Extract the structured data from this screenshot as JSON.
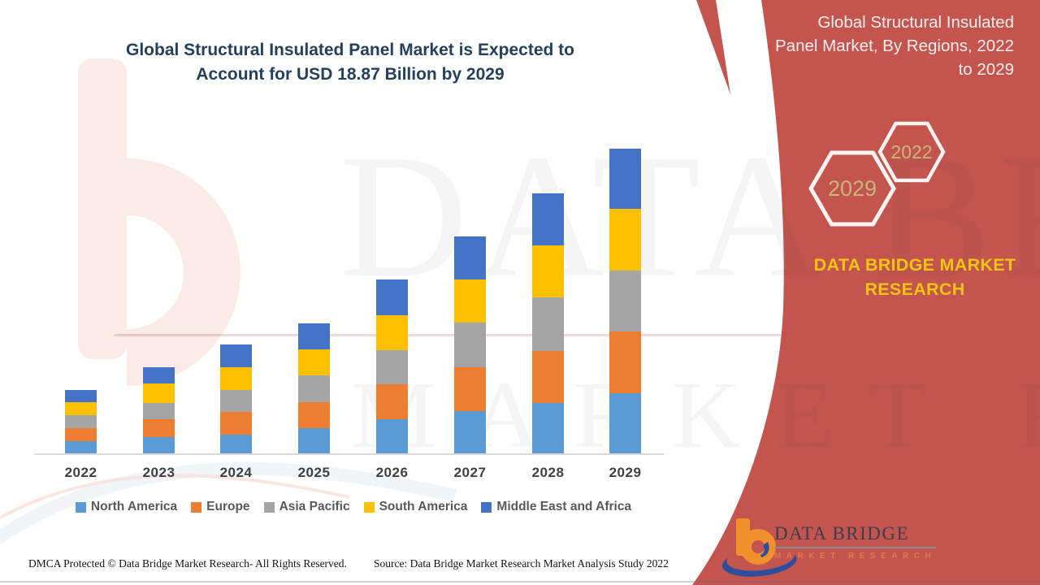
{
  "title": {
    "line1": "Global Structural Insulated Panel Market is Expected to",
    "line2": "Account for USD 18.87 Billion by 2029"
  },
  "side_header": {
    "lines": [
      "Global Structural Insulated",
      "Panel Market, By Regions, 2022",
      "to 2029"
    ]
  },
  "badges": {
    "hex_large_year": "2029",
    "hex_small_year": "2022"
  },
  "brand_text": "DATA BRIDGE MARKET RESEARCH",
  "watermark": {
    "line1": "DATA BRIDGE",
    "line2": "MARKET RESEARCH"
  },
  "chart_data": {
    "type": "bar",
    "stacked": true,
    "unit": "USD Billion",
    "title": "Global Structural Insulated Panel Market, By Regions, 2022 to 2029",
    "categories": [
      "2022",
      "2023",
      "2024",
      "2025",
      "2026",
      "2027",
      "2028",
      "2029"
    ],
    "series": [
      {
        "name": "North America",
        "color": "#5B9BD5",
        "values": [
          0.79,
          1.04,
          1.22,
          1.62,
          2.16,
          2.66,
          3.18,
          3.79
        ]
      },
      {
        "name": "Europe",
        "color": "#ED7D31",
        "values": [
          0.8,
          1.12,
          1.38,
          1.59,
          2.18,
          2.7,
          3.2,
          3.81
        ]
      },
      {
        "name": "Asia Pacific",
        "color": "#A5A5A5",
        "values": [
          0.83,
          1.02,
          1.37,
          1.67,
          2.11,
          2.77,
          3.3,
          3.77
        ]
      },
      {
        "name": "South America",
        "color": "#FFC000",
        "values": [
          0.79,
          1.19,
          1.41,
          1.59,
          2.15,
          2.66,
          3.25,
          3.81
        ]
      },
      {
        "name": "Middle East and Africa",
        "color": "#4472C4",
        "values": [
          0.79,
          1.01,
          1.41,
          1.62,
          2.2,
          2.69,
          3.2,
          3.7
        ]
      }
    ],
    "totals": [
      4.0,
      5.38,
      6.79,
      8.09,
      10.8,
      13.48,
      16.13,
      18.87
    ],
    "highlight_total": "18.87",
    "highlight_year": "2029",
    "ylim": [
      0,
      20
    ],
    "gridlines": false,
    "y_axis_visible": false,
    "legend_position": "bottom"
  },
  "footer": {
    "dmca": "DMCA Protected © Data Bridge Market Research- All Rights Reserved.",
    "source": "Source: Data Bridge Market Research Market Analysis Study 2022"
  },
  "logo": {
    "name": "DATA BRIDGE",
    "sub": "MARKET RESEARCH"
  },
  "colors": {
    "red_panel": "#C3544E",
    "title_text": "#24405E",
    "brand_yellow": "#F2C512",
    "hex_year_text": "#C8B77C",
    "axis_label": "#404040",
    "legend_text": "#595959",
    "axis_line": "#D9D9D9"
  }
}
